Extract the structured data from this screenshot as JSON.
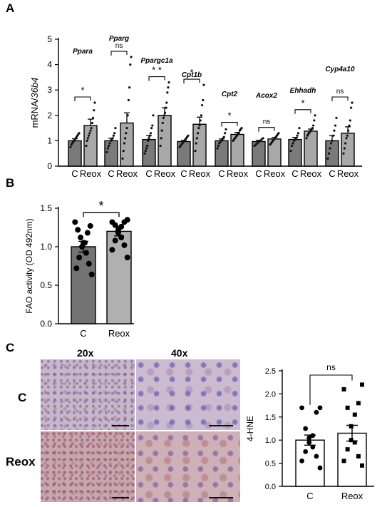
{
  "panel_labels": {
    "a": "A",
    "b": "B",
    "c": "C"
  },
  "chart_data": [
    {
      "id": "A",
      "type": "bar",
      "ylabel": "mRNA/36b4",
      "ylim": [
        0,
        5
      ],
      "yticks": [
        "0",
        "1",
        "2",
        "3",
        "4",
        "5"
      ],
      "categories": [
        "C",
        "Reox",
        "C",
        "Reox",
        "C",
        "Reox",
        "C",
        "Reox",
        "C",
        "Reox",
        "C",
        "Reox",
        "C",
        "Reox",
        "C",
        "Reox"
      ],
      "groups": [
        {
          "gene": "Ppara",
          "sig": "*",
          "values": [
            1.0,
            1.6
          ],
          "errors": [
            0.08,
            0.25
          ],
          "points": [
            [
              0.75,
              0.85,
              0.9,
              0.95,
              1.0,
              1.05,
              1.1,
              1.15,
              1.2,
              1.25,
              1.3
            ],
            [
              0.8,
              1.0,
              1.1,
              1.2,
              1.3,
              1.4,
              1.5,
              1.7,
              1.9,
              2.2,
              2.5
            ]
          ]
        },
        {
          "gene": "Pparg",
          "sig": "ns",
          "values": [
            1.0,
            1.7
          ],
          "errors": [
            0.1,
            0.4
          ],
          "points": [
            [
              0.55,
              0.7,
              0.8,
              0.9,
              1.0,
              1.05,
              1.1,
              1.2,
              1.3,
              1.5
            ],
            [
              0.3,
              0.6,
              0.9,
              1.1,
              1.3,
              1.5,
              2.0,
              2.6,
              3.1,
              4.0,
              4.3
            ]
          ]
        },
        {
          "gene": "Ppargc1a",
          "sig": "* *",
          "values": [
            1.05,
            2.0
          ],
          "errors": [
            0.15,
            0.3
          ],
          "points": [
            [
              0.5,
              0.6,
              0.7,
              0.8,
              1.0,
              1.1,
              1.2,
              1.3,
              1.5,
              1.6,
              2.0
            ],
            [
              0.8,
              1.1,
              1.4,
              1.7,
              1.9,
              2.0,
              2.1,
              2.3,
              2.5,
              2.9,
              3.1,
              3.3
            ]
          ]
        },
        {
          "gene": "Cpt1b",
          "sig": "*",
          "values": [
            0.97,
            1.65
          ],
          "errors": [
            0.05,
            0.28
          ],
          "points": [
            [
              0.75,
              0.8,
              0.85,
              0.9,
              0.95,
              1.0,
              1.05,
              1.1,
              1.15,
              1.2
            ],
            [
              0.6,
              0.9,
              1.1,
              1.3,
              1.5,
              1.6,
              1.8,
              2.0,
              2.4,
              2.6,
              3.2
            ]
          ]
        },
        {
          "gene": "Cpt2",
          "sig": "*",
          "values": [
            1.0,
            1.25
          ],
          "errors": [
            0.07,
            0.08
          ],
          "points": [
            [
              0.7,
              0.8,
              0.9,
              0.95,
              1.0,
              1.05,
              1.1,
              1.15,
              1.3,
              1.45
            ],
            [
              1.0,
              1.05,
              1.1,
              1.15,
              1.2,
              1.25,
              1.3,
              1.4,
              1.45,
              1.5
            ]
          ]
        },
        {
          "gene": "Acox2",
          "sig": "ns",
          "values": [
            0.97,
            1.07
          ],
          "errors": [
            0.05,
            0.06
          ],
          "points": [
            [
              0.8,
              0.85,
              0.9,
              0.95,
              1.0,
              1.05,
              1.1
            ],
            [
              0.85,
              0.9,
              0.95,
              1.0,
              1.05,
              1.1,
              1.15,
              1.2,
              1.25,
              1.3
            ]
          ]
        },
        {
          "gene": "Ehhadh",
          "sig": "*",
          "values": [
            1.05,
            1.38
          ],
          "errors": [
            0.08,
            0.08
          ],
          "points": [
            [
              0.6,
              0.8,
              0.9,
              1.0,
              1.05,
              1.1,
              1.2,
              1.3,
              1.5
            ],
            [
              1.1,
              1.2,
              1.25,
              1.3,
              1.35,
              1.4,
              1.45,
              1.5,
              1.6,
              1.8,
              2.0
            ]
          ]
        },
        {
          "gene": "Cyp4a10",
          "sig": "ns",
          "values": [
            1.0,
            1.3
          ],
          "errors": [
            0.2,
            0.25
          ],
          "points": [
            [
              0.3,
              0.5,
              0.7,
              0.9,
              1.0,
              1.2,
              1.4,
              1.6,
              1.9
            ],
            [
              0.5,
              0.7,
              0.9,
              1.1,
              1.2,
              1.4,
              1.6,
              1.8,
              2.3,
              2.5
            ]
          ]
        }
      ],
      "colors": {
        "control": "#7a7a7a",
        "reox": "#a8a8a8",
        "points": "#111111"
      }
    },
    {
      "id": "B",
      "type": "bar",
      "ylabel": "FAO activity (OD 492nm)",
      "ylim": [
        0,
        1.5
      ],
      "yticks": [
        "0.0",
        "0.5",
        "1.0",
        "1.5"
      ],
      "categories": [
        "C",
        "Reox"
      ],
      "values": [
        1.0,
        1.2
      ],
      "errors": [
        0.07,
        0.06
      ],
      "sig": "*",
      "points": [
        [
          0.64,
          0.72,
          0.78,
          0.86,
          0.92,
          1.0,
          1.05,
          1.05,
          1.12,
          1.18,
          1.22,
          1.27,
          1.32
        ],
        [
          0.86,
          0.96,
          1.02,
          1.08,
          1.12,
          1.18,
          1.22,
          1.26,
          1.28,
          1.32,
          1.32,
          1.35
        ]
      ],
      "colors": {
        "control": "#737373",
        "reox": "#b0b0b0"
      }
    },
    {
      "id": "C",
      "type": "bar",
      "ylabel": "4-HNE",
      "ylim": [
        0,
        2.5
      ],
      "yticks": [
        "0.0",
        "0.5",
        "1.0",
        "1.5",
        "2.0",
        "2.5"
      ],
      "categories": [
        "C",
        "Reox"
      ],
      "values": [
        1.0,
        1.15
      ],
      "errors": [
        0.11,
        0.17
      ],
      "sig": "ns",
      "points": [
        [
          0.4,
          0.55,
          0.65,
          0.75,
          0.85,
          0.95,
          1.05,
          1.1,
          1.25,
          1.6,
          1.7,
          1.7
        ],
        [
          0.45,
          0.55,
          0.65,
          0.8,
          0.95,
          1.0,
          1.3,
          1.55,
          1.7,
          1.8,
          2.1,
          2.2
        ]
      ],
      "colors": {
        "control": "#ffffff",
        "reox": "#ffffff"
      }
    }
  ],
  "micrographs": {
    "headers": [
      "20x",
      "40x"
    ],
    "rows": [
      "C",
      "Reox"
    ]
  }
}
